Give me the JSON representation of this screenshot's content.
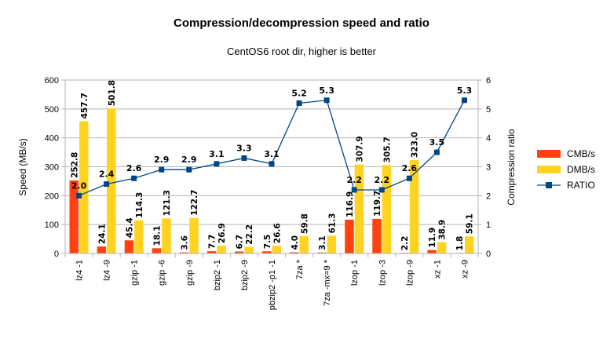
{
  "chart_data": {
    "type": "bar",
    "title": "Compression/decompression speed and ratio",
    "subtitle": "CentOS6 root dir, higher is better",
    "ylabel": "Speed (MB/s)",
    "y2label": "Compression ratio",
    "ylim": [
      0,
      600
    ],
    "y2lim": [
      0,
      6
    ],
    "yticks": [
      "0",
      "100",
      "200",
      "300",
      "400",
      "500",
      "600"
    ],
    "y2ticks": [
      "0",
      "1",
      "2",
      "3",
      "4",
      "5",
      "6"
    ],
    "categories": [
      "lz4 -1",
      "lz4 -9",
      "gzip -1",
      "gzip -6",
      "gzip -9",
      "bzip2 -1",
      "bzip2 -9",
      "pbzip2 -p1 -1",
      "7za *",
      "7za -mx=9 *",
      "lzop -1",
      "lzop -3",
      "lzop -9",
      "xz -1",
      "xz -9"
    ],
    "series": [
      {
        "name": "CMB/s",
        "kind": "bar",
        "color": "#ff420e",
        "values": [
          252.8,
          24.1,
          45.4,
          18.1,
          3.6,
          7.7,
          6.7,
          7.5,
          4.0,
          3.1,
          116.9,
          119.7,
          2.2,
          11.9,
          1.8
        ],
        "labels": [
          "252.8",
          "24.1",
          "45.4",
          "18.1",
          "3.6",
          "7.7",
          "6.7",
          "7.5",
          "4.0",
          "3.1",
          "116.9",
          "119.7",
          "2.2",
          "11.9",
          "1.8"
        ]
      },
      {
        "name": "DMB/s",
        "kind": "bar",
        "color": "#ffd320",
        "values": [
          457.7,
          501.8,
          114.3,
          121.3,
          122.7,
          26.9,
          22.2,
          26.6,
          59.8,
          61.3,
          307.9,
          305.7,
          323.0,
          38.9,
          59.1
        ],
        "labels": [
          "457.7",
          "501.8",
          "114.3",
          "121.3",
          "122.7",
          "26.9",
          "22.2",
          "26.6",
          "59.8",
          "61.3",
          "307.9",
          "305.7",
          "323.0",
          "38.9",
          "59.1"
        ]
      },
      {
        "name": "RATIO",
        "kind": "line",
        "axis": "right",
        "color": "#004586",
        "values": [
          2.0,
          2.4,
          2.6,
          2.9,
          2.9,
          3.1,
          3.3,
          3.1,
          5.2,
          5.3,
          2.2,
          2.2,
          2.6,
          3.5,
          5.3
        ],
        "labels": [
          "2.0",
          "2.4",
          "2.6",
          "2.9",
          "2.9",
          "3.1",
          "3.3",
          "3.1",
          "5.2",
          "5.3",
          "2.2",
          "2.2",
          "2.6",
          "3.5",
          "5.3"
        ]
      }
    ],
    "legend": "right",
    "grid": true
  }
}
